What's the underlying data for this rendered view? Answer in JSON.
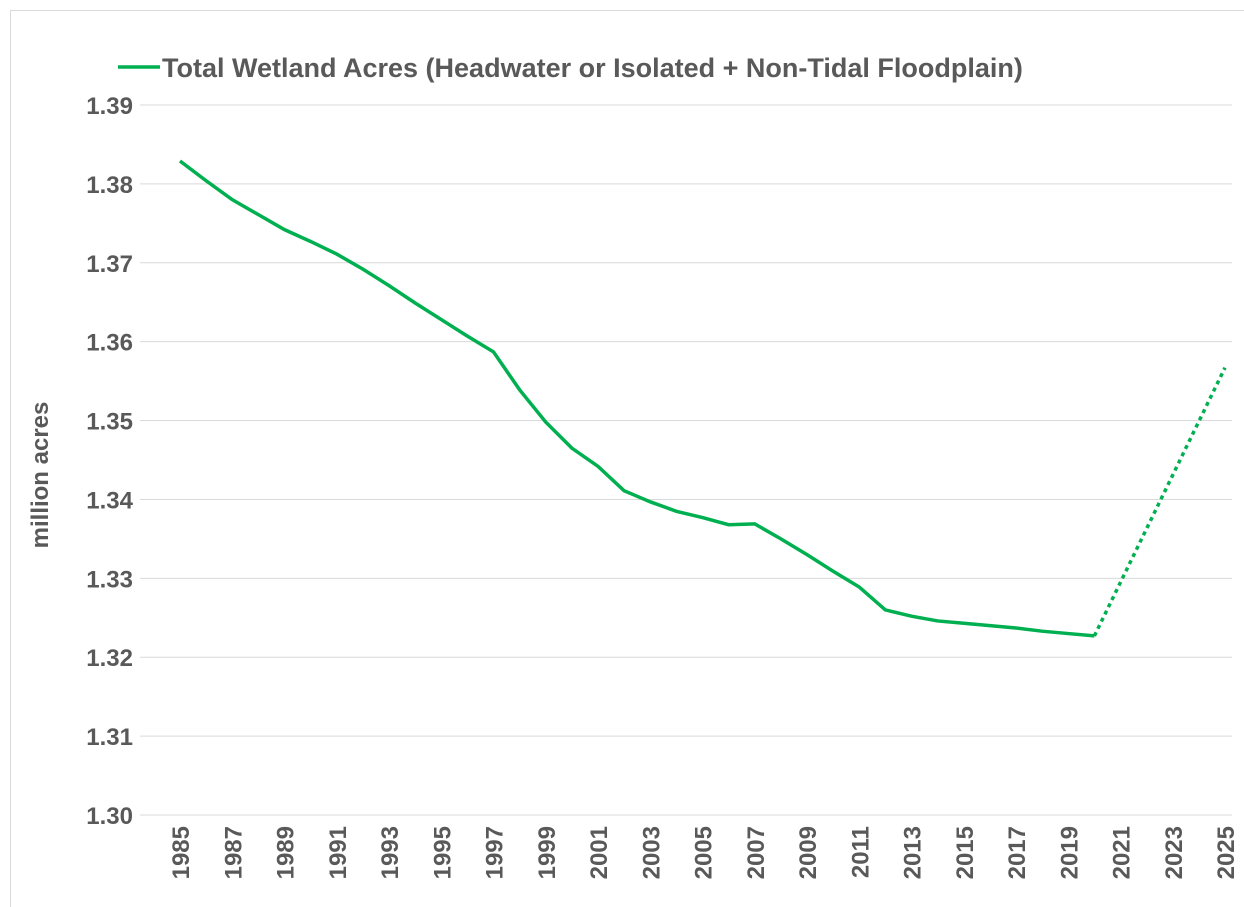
{
  "chart_data": {
    "type": "line",
    "y_axis_label": "million acres",
    "x": [
      1985,
      1986,
      1987,
      1988,
      1989,
      1990,
      1991,
      1992,
      1993,
      1994,
      1995,
      1996,
      1997,
      1998,
      1999,
      2000,
      2001,
      2002,
      2003,
      2004,
      2005,
      2006,
      2007,
      2008,
      2009,
      2010,
      2011,
      2012,
      2013,
      2014,
      2015,
      2016,
      2017,
      2018,
      2019,
      2020,
      2025
    ],
    "series": [
      {
        "name": "Total Wetland Acres (Headwater or Isolated + Non-Tidal Floodplain)",
        "color": "#00b050",
        "dash": "solid",
        "values": [
          1.3829,
          1.3804,
          1.378,
          1.3761,
          1.3742,
          1.3727,
          1.3711,
          1.3692,
          1.3671,
          1.3649,
          1.3628,
          1.3607,
          1.3587,
          1.3539,
          1.3498,
          1.3465,
          1.3442,
          1.3411,
          1.3397,
          1.3385,
          1.3377,
          1.3368,
          1.3369,
          1.335,
          1.333,
          1.3309,
          1.3289,
          1.326,
          1.3252,
          1.3246,
          1.3243,
          1.324,
          1.3237,
          1.3233,
          1.323,
          1.3227,
          null
        ]
      },
      {
        "color": "#00b050",
        "dash": "dotted",
        "values": [
          null,
          null,
          null,
          null,
          null,
          null,
          null,
          null,
          null,
          null,
          null,
          null,
          null,
          null,
          null,
          null,
          null,
          null,
          null,
          null,
          null,
          null,
          null,
          null,
          null,
          null,
          null,
          null,
          null,
          null,
          null,
          null,
          null,
          null,
          null,
          1.3227,
          1.3567
        ]
      }
    ],
    "xlim": [
      1985,
      2025
    ],
    "xticks": [
      1985,
      1987,
      1989,
      1991,
      1993,
      1995,
      1997,
      1999,
      2001,
      2003,
      2005,
      2007,
      2009,
      2011,
      2013,
      2015,
      2017,
      2019,
      2021,
      2023,
      2025
    ],
    "ylim": [
      1.3,
      1.39
    ],
    "yticks": [
      {
        "value": 1.3,
        "label": "1.30"
      },
      1.31,
      1.32,
      1.33,
      1.34,
      1.35,
      1.36,
      1.37,
      1.38,
      1.39
    ],
    "grid": true
  }
}
